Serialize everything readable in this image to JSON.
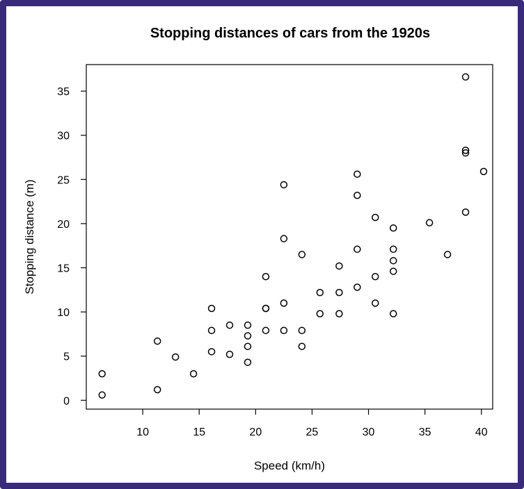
{
  "chart_data": {
    "type": "scatter",
    "title": "Stopping distances of cars from the 1920s",
    "xlabel": "Speed (km/h)",
    "ylabel": "Stopping distance (m)",
    "xlim": [
      5,
      41
    ],
    "ylim": [
      -1,
      38
    ],
    "xticks": [
      10,
      15,
      20,
      25,
      30,
      35,
      40
    ],
    "yticks": [
      0,
      5,
      10,
      15,
      20,
      25,
      30,
      35
    ],
    "grid": false,
    "points": [
      {
        "x": 6.4,
        "y": 0.6
      },
      {
        "x": 6.4,
        "y": 3.0
      },
      {
        "x": 11.3,
        "y": 1.2
      },
      {
        "x": 11.3,
        "y": 6.7
      },
      {
        "x": 12.9,
        "y": 4.9
      },
      {
        "x": 14.5,
        "y": 3.0
      },
      {
        "x": 16.1,
        "y": 5.5
      },
      {
        "x": 16.1,
        "y": 7.9
      },
      {
        "x": 16.1,
        "y": 10.4
      },
      {
        "x": 17.7,
        "y": 5.2
      },
      {
        "x": 17.7,
        "y": 8.5
      },
      {
        "x": 19.3,
        "y": 4.3
      },
      {
        "x": 19.3,
        "y": 6.1
      },
      {
        "x": 19.3,
        "y": 7.3
      },
      {
        "x": 19.3,
        "y": 8.5
      },
      {
        "x": 20.9,
        "y": 7.9
      },
      {
        "x": 20.9,
        "y": 10.4
      },
      {
        "x": 20.9,
        "y": 10.4
      },
      {
        "x": 20.9,
        "y": 14.0
      },
      {
        "x": 22.5,
        "y": 7.9
      },
      {
        "x": 22.5,
        "y": 11.0
      },
      {
        "x": 22.5,
        "y": 18.3
      },
      {
        "x": 22.5,
        "y": 24.4
      },
      {
        "x": 24.1,
        "y": 6.1
      },
      {
        "x": 24.1,
        "y": 7.9
      },
      {
        "x": 24.1,
        "y": 16.5
      },
      {
        "x": 25.7,
        "y": 9.8
      },
      {
        "x": 25.7,
        "y": 12.2
      },
      {
        "x": 27.4,
        "y": 9.8
      },
      {
        "x": 27.4,
        "y": 12.2
      },
      {
        "x": 27.4,
        "y": 15.2
      },
      {
        "x": 29.0,
        "y": 12.8
      },
      {
        "x": 29.0,
        "y": 17.1
      },
      {
        "x": 29.0,
        "y": 23.2
      },
      {
        "x": 29.0,
        "y": 25.6
      },
      {
        "x": 30.6,
        "y": 11.0
      },
      {
        "x": 30.6,
        "y": 14.0
      },
      {
        "x": 30.6,
        "y": 20.7
      },
      {
        "x": 32.2,
        "y": 9.8
      },
      {
        "x": 32.2,
        "y": 14.6
      },
      {
        "x": 32.2,
        "y": 15.8
      },
      {
        "x": 32.2,
        "y": 17.1
      },
      {
        "x": 32.2,
        "y": 19.5
      },
      {
        "x": 35.4,
        "y": 20.1
      },
      {
        "x": 37.0,
        "y": 16.5
      },
      {
        "x": 38.6,
        "y": 21.3
      },
      {
        "x": 38.6,
        "y": 28.0
      },
      {
        "x": 38.6,
        "y": 28.3
      },
      {
        "x": 38.6,
        "y": 36.6
      },
      {
        "x": 40.2,
        "y": 25.9
      }
    ]
  }
}
